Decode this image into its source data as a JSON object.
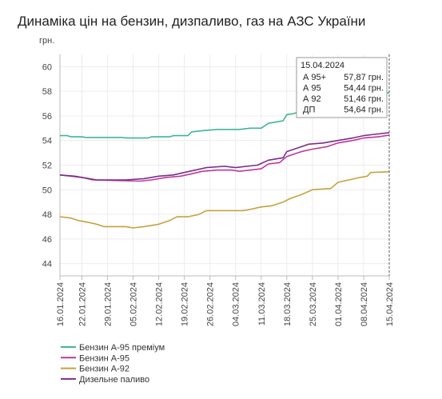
{
  "title": "Динаміка цін на бензин, дизпаливо, газ на АЗС України",
  "chart_data": {
    "type": "line",
    "title": "Динаміка цін на бензин, дизпаливо, газ на АЗС України",
    "ylabel": "грн.",
    "xlabel": "",
    "ylim": [
      43,
      61
    ],
    "yticks": [
      44,
      46,
      48,
      50,
      52,
      54,
      56,
      58,
      60
    ],
    "x_start": "16.01.2024",
    "x_end": "15.04.2024",
    "xticks": [
      "16.01.2024",
      "22.01.2024",
      "29.01.2024",
      "05.02.2024",
      "12.02.2024",
      "19.02.2024",
      "26.02.2024",
      "04.03.2024",
      "11.03.2024",
      "18.03.2024",
      "25.03.2024",
      "01.04.2024",
      "08.04.2024",
      "15.04.2024"
    ],
    "grid": true,
    "legend_position": "bottom-left",
    "series": [
      {
        "name": "Бензин А-95 преміум",
        "color": "#3fb59a",
        "points": [
          [
            "16.01.2024",
            54.4
          ],
          [
            "18.01.2024",
            54.4
          ],
          [
            "19.01.2024",
            54.3
          ],
          [
            "22.01.2024",
            54.3
          ],
          [
            "23.01.2024",
            54.25
          ],
          [
            "02.02.2024",
            54.25
          ],
          [
            "03.02.2024",
            54.2
          ],
          [
            "09.02.2024",
            54.2
          ],
          [
            "10.02.2024",
            54.3
          ],
          [
            "15.02.2024",
            54.3
          ],
          [
            "16.02.2024",
            54.4
          ],
          [
            "20.02.2024",
            54.4
          ],
          [
            "21.02.2024",
            54.7
          ],
          [
            "24.02.2024",
            54.8
          ],
          [
            "28.02.2024",
            54.9
          ],
          [
            "05.03.2024",
            54.9
          ],
          [
            "08.03.2024",
            55.0
          ],
          [
            "11.03.2024",
            55.0
          ],
          [
            "13.03.2024",
            55.4
          ],
          [
            "17.03.2024",
            55.6
          ],
          [
            "18.03.2024",
            56.1
          ],
          [
            "20.03.2024",
            56.2
          ],
          [
            "23.03.2024",
            56.5
          ],
          [
            "25.03.2024",
            56.8
          ],
          [
            "28.03.2024",
            57.1
          ],
          [
            "01.04.2024",
            57.4
          ],
          [
            "04.04.2024",
            57.6
          ],
          [
            "08.04.2024",
            57.8
          ],
          [
            "11.04.2024",
            57.85
          ],
          [
            "15.04.2024",
            57.87
          ]
        ]
      },
      {
        "name": "Бензин А-95",
        "color": "#c0369e",
        "points": [
          [
            "16.01.2024",
            51.2
          ],
          [
            "19.01.2024",
            51.1
          ],
          [
            "22.01.2024",
            51.0
          ],
          [
            "25.01.2024",
            50.8
          ],
          [
            "07.02.2024",
            50.7
          ],
          [
            "10.02.2024",
            50.8
          ],
          [
            "14.02.2024",
            51.0
          ],
          [
            "18.02.2024",
            51.1
          ],
          [
            "21.02.2024",
            51.3
          ],
          [
            "24.02.2024",
            51.5
          ],
          [
            "28.02.2024",
            51.6
          ],
          [
            "03.03.2024",
            51.6
          ],
          [
            "05.03.2024",
            51.5
          ],
          [
            "08.03.2024",
            51.6
          ],
          [
            "11.03.2024",
            51.7
          ],
          [
            "13.03.2024",
            52.1
          ],
          [
            "16.03.2024",
            52.2
          ],
          [
            "18.03.2024",
            52.7
          ],
          [
            "22.03.2024",
            53.1
          ],
          [
            "25.03.2024",
            53.3
          ],
          [
            "29.03.2024",
            53.5
          ],
          [
            "01.04.2024",
            53.8
          ],
          [
            "05.04.2024",
            54.0
          ],
          [
            "08.04.2024",
            54.2
          ],
          [
            "12.04.2024",
            54.3
          ],
          [
            "15.04.2024",
            54.44
          ]
        ]
      },
      {
        "name": "Бензин А-92",
        "color": "#c4a23d",
        "points": [
          [
            "16.01.2024",
            47.8
          ],
          [
            "19.01.2024",
            47.7
          ],
          [
            "21.01.2024",
            47.5
          ],
          [
            "23.01.2024",
            47.4
          ],
          [
            "26.01.2024",
            47.2
          ],
          [
            "28.01.2024",
            47.0
          ],
          [
            "03.02.2024",
            47.0
          ],
          [
            "05.02.2024",
            46.9
          ],
          [
            "08.02.2024",
            47.0
          ],
          [
            "12.02.2024",
            47.2
          ],
          [
            "15.02.2024",
            47.5
          ],
          [
            "17.02.2024",
            47.8
          ],
          [
            "20.02.2024",
            47.8
          ],
          [
            "23.02.2024",
            48.0
          ],
          [
            "25.02.2024",
            48.3
          ],
          [
            "06.03.2024",
            48.3
          ],
          [
            "08.03.2024",
            48.4
          ],
          [
            "11.03.2024",
            48.6
          ],
          [
            "14.03.2024",
            48.7
          ],
          [
            "17.03.2024",
            49.0
          ],
          [
            "19.03.2024",
            49.3
          ],
          [
            "22.03.2024",
            49.6
          ],
          [
            "25.03.2024",
            50.0
          ],
          [
            "30.03.2024",
            50.1
          ],
          [
            "01.04.2024",
            50.6
          ],
          [
            "04.04.2024",
            50.8
          ],
          [
            "07.04.2024",
            51.0
          ],
          [
            "09.04.2024",
            51.1
          ],
          [
            "10.04.2024",
            51.4
          ],
          [
            "15.04.2024",
            51.46
          ]
        ]
      },
      {
        "name": "Дизельне паливо",
        "color": "#7a2f88",
        "points": [
          [
            "16.01.2024",
            51.2
          ],
          [
            "20.01.2024",
            51.1
          ],
          [
            "24.01.2024",
            50.9
          ],
          [
            "26.01.2024",
            50.8
          ],
          [
            "03.02.2024",
            50.8
          ],
          [
            "08.02.2024",
            50.9
          ],
          [
            "12.02.2024",
            51.1
          ],
          [
            "16.02.2024",
            51.2
          ],
          [
            "19.02.2024",
            51.4
          ],
          [
            "22.02.2024",
            51.6
          ],
          [
            "25.02.2024",
            51.8
          ],
          [
            "01.03.2024",
            51.9
          ],
          [
            "04.03.2024",
            51.8
          ],
          [
            "07.03.2024",
            51.9
          ],
          [
            "10.03.2024",
            52.0
          ],
          [
            "13.03.2024",
            52.4
          ],
          [
            "17.03.2024",
            52.6
          ],
          [
            "18.03.2024",
            53.1
          ],
          [
            "21.03.2024",
            53.4
          ],
          [
            "24.03.2024",
            53.7
          ],
          [
            "28.03.2024",
            53.8
          ],
          [
            "01.04.2024",
            54.0
          ],
          [
            "05.04.2024",
            54.2
          ],
          [
            "08.04.2024",
            54.4
          ],
          [
            "11.04.2024",
            54.5
          ],
          [
            "15.04.2024",
            54.64
          ]
        ]
      }
    ],
    "tooltip": {
      "date": "15.04.2024",
      "rows": [
        {
          "label": "А 95+",
          "value": "57,87 грн."
        },
        {
          "label": "А 95",
          "value": "54,44 грн."
        },
        {
          "label": "А 92",
          "value": "51,46 грн."
        },
        {
          "label": "ДП",
          "value": "54,64 грн."
        }
      ]
    }
  }
}
